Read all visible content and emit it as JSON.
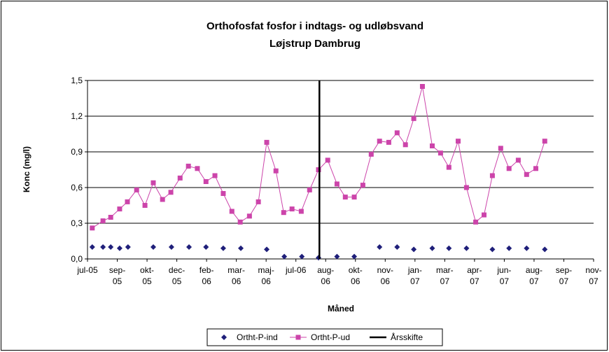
{
  "chart_data": {
    "type": "line",
    "title": "Orthofosfat  fosfor i indtags- og udløbsvand",
    "subtitle": "Løjstrup Dambrug",
    "ylabel": "Konc (mg/l)",
    "xlabel": "Måned",
    "ylim": [
      0,
      1.5
    ],
    "yticks": [
      {
        "value": 0,
        "label": "0,0"
      },
      {
        "value": 0.3,
        "label": "0,3"
      },
      {
        "value": 0.6,
        "label": "0,6"
      },
      {
        "value": 0.9,
        "label": "0,9"
      },
      {
        "value": 1.2,
        "label": "1,2"
      },
      {
        "value": 1.5,
        "label": "1,5"
      }
    ],
    "xlim": [
      0,
      17
    ],
    "xticks": [
      {
        "value": 0,
        "label": "jul-05"
      },
      {
        "value": 1,
        "label": "sep-05"
      },
      {
        "value": 2,
        "label": "okt-05"
      },
      {
        "value": 3,
        "label": "dec-05"
      },
      {
        "value": 4,
        "label": "feb-06"
      },
      {
        "value": 5,
        "label": "mar-06"
      },
      {
        "value": 6,
        "label": "maj-06"
      },
      {
        "value": 7,
        "label": "jul-06"
      },
      {
        "value": 8,
        "label": "aug-06"
      },
      {
        "value": 9,
        "label": "okt-06"
      },
      {
        "value": 10,
        "label": "nov-06"
      },
      {
        "value": 11,
        "label": "jan-07"
      },
      {
        "value": 12,
        "label": "mar-07"
      },
      {
        "value": 13,
        "label": "apr-07"
      },
      {
        "value": 14,
        "label": "jun-07"
      },
      {
        "value": 15,
        "label": "aug-07"
      },
      {
        "value": 16,
        "label": "sep-07"
      },
      {
        "value": 17,
        "label": "nov-07"
      }
    ],
    "grid": true,
    "legend": "bottom",
    "series": [
      {
        "name": "Ortht-P-ind",
        "color": "#1f1f7a",
        "marker": "diamond",
        "line": false,
        "x": [
          0.16,
          0.52,
          0.78,
          1.08,
          1.36,
          2.21,
          2.82,
          3.41,
          3.98,
          4.56,
          5.15,
          6.02,
          6.61,
          7.2,
          7.76,
          8.38,
          8.96,
          9.81,
          10.4,
          10.96,
          11.58,
          12.14,
          12.73,
          13.6,
          14.16,
          14.75,
          15.36
        ],
        "values": [
          0.1,
          0.1,
          0.1,
          0.09,
          0.1,
          0.1,
          0.1,
          0.1,
          0.1,
          0.09,
          0.09,
          0.08,
          0.02,
          0.02,
          0.01,
          0.02,
          0.02,
          0.1,
          0.1,
          0.08,
          0.09,
          0.09,
          0.09,
          0.08,
          0.09,
          0.09,
          0.08
        ]
      },
      {
        "name": "Ortht-P-ud",
        "color": "#cc44aa",
        "marker": "square",
        "line": true,
        "x": [
          0.16,
          0.52,
          0.78,
          1.08,
          1.34,
          1.65,
          1.93,
          2.21,
          2.52,
          2.8,
          3.11,
          3.39,
          3.69,
          3.98,
          4.28,
          4.56,
          4.85,
          5.13,
          5.44,
          5.74,
          6.02,
          6.33,
          6.59,
          6.87,
          7.18,
          7.46,
          7.76,
          8.07,
          8.38,
          8.66,
          8.96,
          9.25,
          9.53,
          9.81,
          10.12,
          10.4,
          10.68,
          10.96,
          11.25,
          11.58,
          11.86,
          12.14,
          12.45,
          12.73,
          13.04,
          13.32,
          13.6,
          13.88,
          14.16,
          14.47,
          14.75,
          15.06,
          15.36
        ],
        "values": [
          0.26,
          0.32,
          0.35,
          0.42,
          0.48,
          0.58,
          0.45,
          0.64,
          0.5,
          0.56,
          0.68,
          0.78,
          0.76,
          0.65,
          0.7,
          0.55,
          0.4,
          0.31,
          0.36,
          0.48,
          0.98,
          0.74,
          0.39,
          0.42,
          0.4,
          0.58,
          0.75,
          0.83,
          0.63,
          0.52,
          0.52,
          0.62,
          0.88,
          0.99,
          0.98,
          1.06,
          0.96,
          1.18,
          1.45,
          0.95,
          0.89,
          0.77,
          0.99,
          0.6,
          0.31,
          0.37,
          0.7,
          0.93,
          0.76,
          0.83,
          0.71,
          0.76,
          0.99
        ]
      },
      {
        "name": "Årsskifte",
        "color": "#000000",
        "marker": "none",
        "line": true,
        "x": [
          7.79,
          7.79
        ],
        "values": [
          0,
          1.5
        ]
      }
    ]
  }
}
